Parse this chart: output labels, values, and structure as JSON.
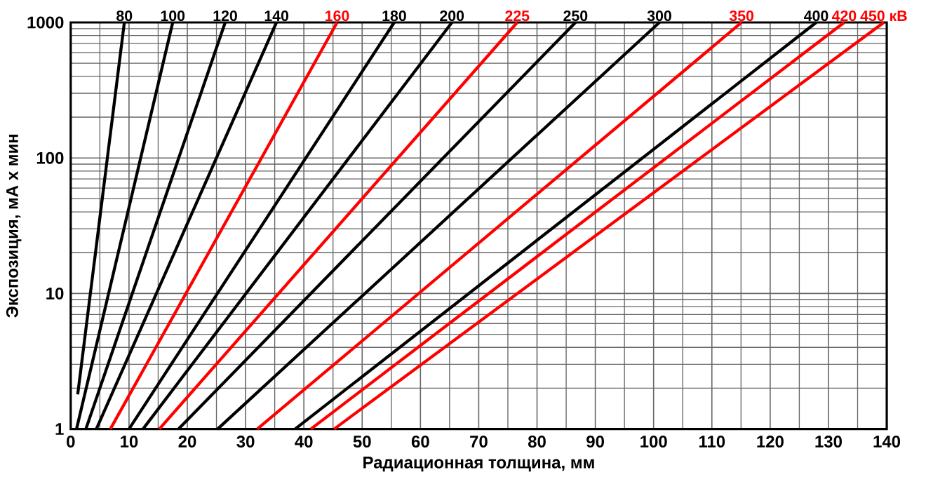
{
  "chart_data": {
    "type": "line",
    "xlabel": "Радиационная толщина, мм",
    "ylabel": "Экспозиция, мА х мин",
    "log": "y",
    "grid": true,
    "xlim": [
      0,
      140
    ],
    "ylim": [
      1,
      1000
    ],
    "xticks": [
      0,
      10,
      20,
      30,
      40,
      50,
      60,
      70,
      80,
      90,
      100,
      110,
      120,
      130,
      140
    ],
    "yticks": [
      1,
      10,
      100,
      1000
    ],
    "series": [
      {
        "name": "80",
        "color": "#000000",
        "x": [
          1.2,
          9.2
        ],
        "values": [
          1.8,
          1000
        ]
      },
      {
        "name": "100",
        "color": "#000000",
        "x": [
          1.0,
          17.5
        ],
        "values": [
          1,
          1000
        ]
      },
      {
        "name": "120",
        "color": "#000000",
        "x": [
          2.6,
          26.5
        ],
        "values": [
          1,
          1000
        ]
      },
      {
        "name": "140",
        "color": "#000000",
        "x": [
          4.4,
          35.3
        ],
        "values": [
          1,
          1000
        ]
      },
      {
        "name": "160",
        "color": "#ff0000",
        "x": [
          6.8,
          45.7
        ],
        "values": [
          1,
          1000
        ]
      },
      {
        "name": "180",
        "color": "#000000",
        "x": [
          10.0,
          55.5
        ],
        "values": [
          1,
          1000
        ]
      },
      {
        "name": "200",
        "color": "#000000",
        "x": [
          12.4,
          65.4
        ],
        "values": [
          1,
          1000
        ]
      },
      {
        "name": "225",
        "color": "#ff0000",
        "x": [
          15.2,
          76.6
        ],
        "values": [
          1,
          1000
        ]
      },
      {
        "name": "250",
        "color": "#000000",
        "x": [
          18.5,
          86.6
        ],
        "values": [
          1,
          1000
        ]
      },
      {
        "name": "300",
        "color": "#000000",
        "x": [
          25.2,
          101.0
        ],
        "values": [
          1,
          1000
        ]
      },
      {
        "name": "350",
        "color": "#ff0000",
        "x": [
          32.0,
          115.1
        ],
        "values": [
          1,
          1000
        ]
      },
      {
        "name": "400",
        "color": "#000000",
        "x": [
          38.5,
          127.9
        ],
        "values": [
          1,
          1000
        ]
      },
      {
        "name": "420",
        "color": "#ff0000",
        "x": [
          41.2,
          132.7
        ],
        "values": [
          1,
          1000
        ]
      },
      {
        "name": "450 кВ",
        "color": "#ff0000",
        "x": [
          45.2,
          139.5
        ],
        "values": [
          1,
          1000
        ]
      }
    ]
  }
}
